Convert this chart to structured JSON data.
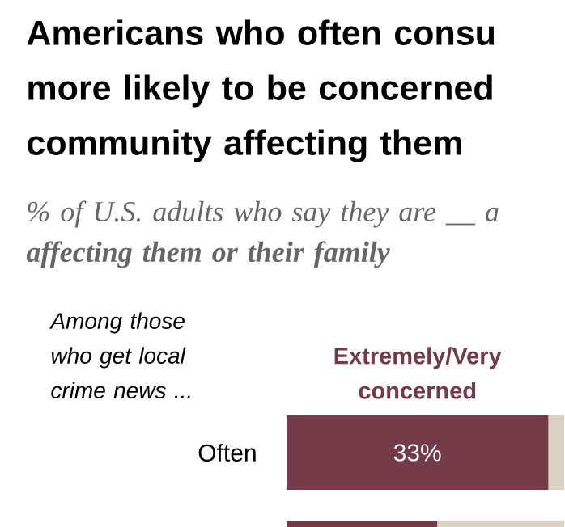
{
  "chart_data": {
    "type": "bar",
    "orientation": "horizontal",
    "stacked": true,
    "title": "Americans who often consu more likely to be concerned community affecting them",
    "subtitle": "% of U.S. adults who say they are __ a **affecting them or their family**",
    "ylabel": "Among those who get local crime news ...",
    "categories": [
      "Often",
      null
    ],
    "xlim": [
      0,
      35
    ],
    "series": [
      {
        "name": "Extremely/Very concerned",
        "color": "#733a48",
        "values": [
          33,
          19
        ],
        "value_labels": [
          "33%",
          null
        ]
      },
      {
        "color": "#d9d2c4",
        "values": [
          2,
          16
        ]
      }
    ]
  }
}
